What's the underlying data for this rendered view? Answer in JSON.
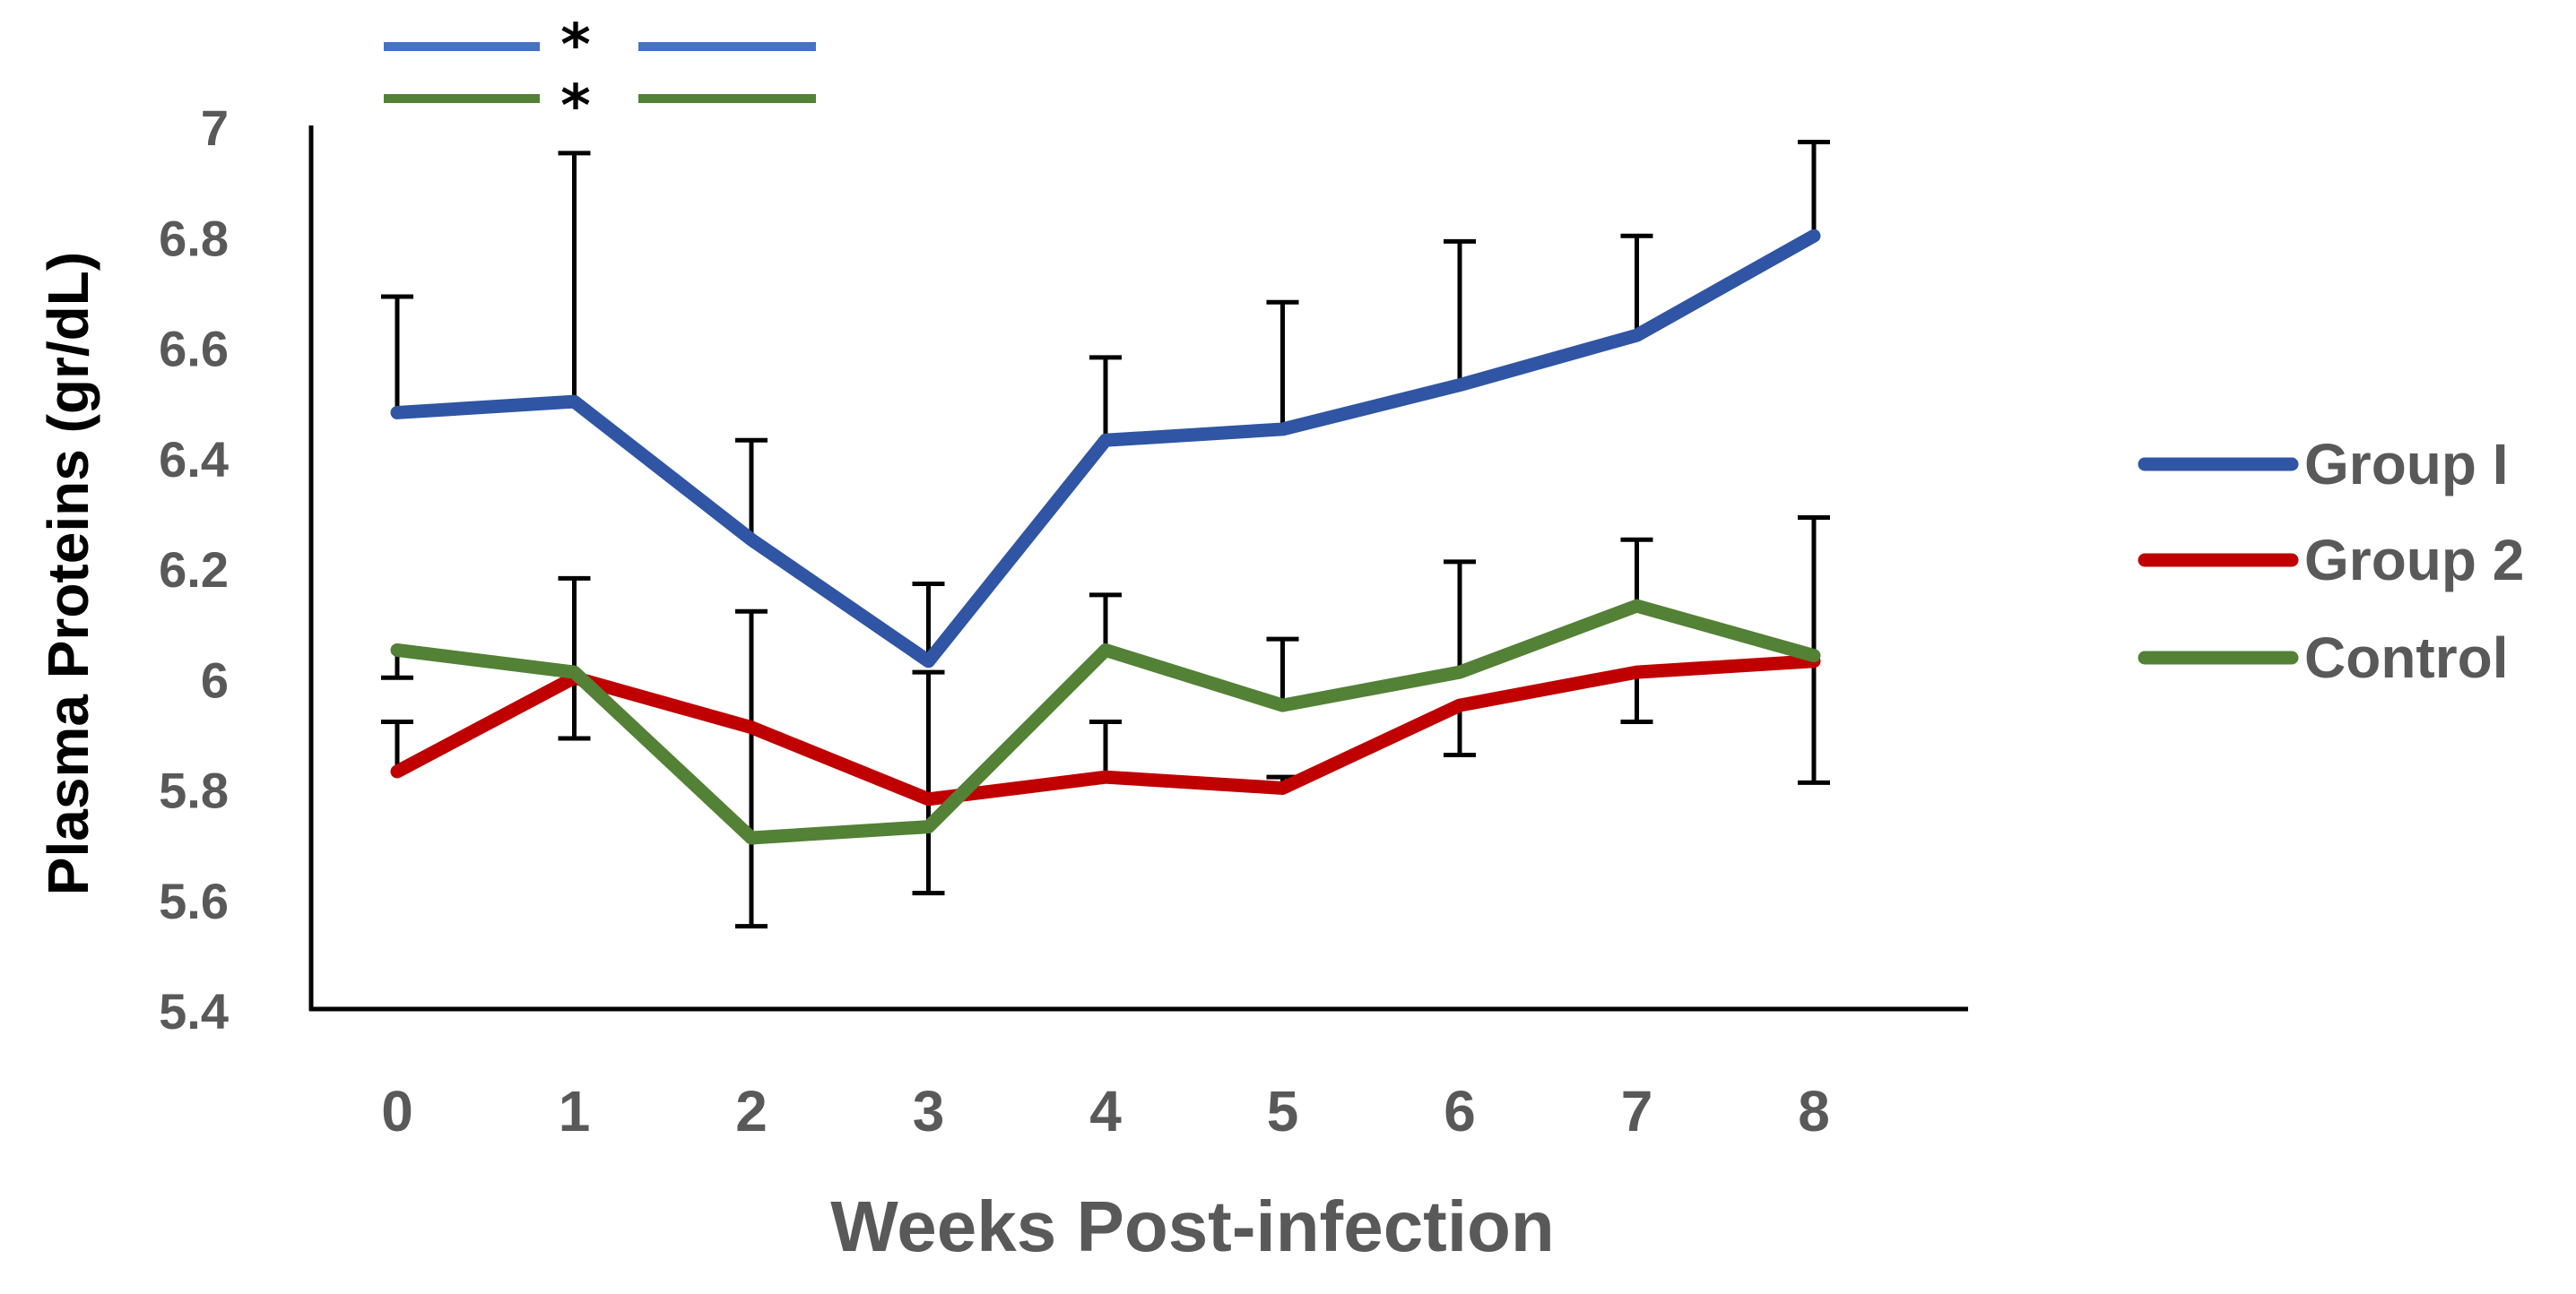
{
  "chart_data": {
    "type": "line",
    "title": "",
    "xlabel": "Weeks Post-infection",
    "ylabel": "Plasma Proteins (gr/dL)",
    "x": [
      0,
      1,
      2,
      3,
      4,
      5,
      6,
      7,
      8
    ],
    "x_tick_labels": [
      "0",
      "1",
      "2",
      "3",
      "4",
      "5",
      "6",
      "7",
      "8"
    ],
    "ylim": [
      5.4,
      7
    ],
    "y_ticks": [
      5.4,
      5.6,
      5.8,
      6,
      6.2,
      6.4,
      6.6,
      6.8,
      7
    ],
    "y_tick_labels": [
      "5.4",
      "5.6",
      "5.8",
      "6",
      "6.2",
      "6.4",
      "6.6",
      "6.8",
      "7"
    ],
    "grid": false,
    "legend_position": "right",
    "series": [
      {
        "name": "Group I",
        "color": "#2F55A4",
        "values": [
          6.48,
          6.5,
          6.25,
          6.03,
          6.43,
          6.45,
          6.53,
          6.62,
          6.8
        ],
        "error_upper": [
          6.69,
          6.95,
          6.43,
          6.17,
          6.58,
          6.68,
          6.79,
          6.8,
          6.97
        ],
        "error_lower": [
          null,
          null,
          null,
          null,
          null,
          null,
          null,
          null,
          null
        ]
      },
      {
        "name": "Group 2",
        "color": "#C00000",
        "values": [
          5.83,
          6.0,
          5.91,
          5.78,
          5.82,
          5.8,
          5.95,
          6.01,
          6.03
        ],
        "error_upper": [
          null,
          null,
          null,
          null,
          null,
          null,
          null,
          null,
          null
        ],
        "error_lower": [
          5.92,
          5.89,
          5.55,
          5.61,
          5.92,
          5.82,
          5.86,
          5.92,
          5.81
        ]
      },
      {
        "name": "Control",
        "color": "#538135",
        "values": [
          6.05,
          6.01,
          5.71,
          5.73,
          6.05,
          5.95,
          6.01,
          6.13,
          6.04
        ],
        "error_upper": [
          6.0,
          6.18,
          6.12,
          6.01,
          6.15,
          6.07,
          6.21,
          6.25,
          6.29
        ],
        "error_lower": [
          null,
          null,
          null,
          null,
          null,
          null,
          null,
          null,
          null
        ]
      }
    ],
    "annotations": [
      {
        "text": "*",
        "color": "#4472C4",
        "description": "significance marker for Group I"
      },
      {
        "text": "*",
        "color": "#538135",
        "description": "significance marker for Control"
      }
    ]
  }
}
